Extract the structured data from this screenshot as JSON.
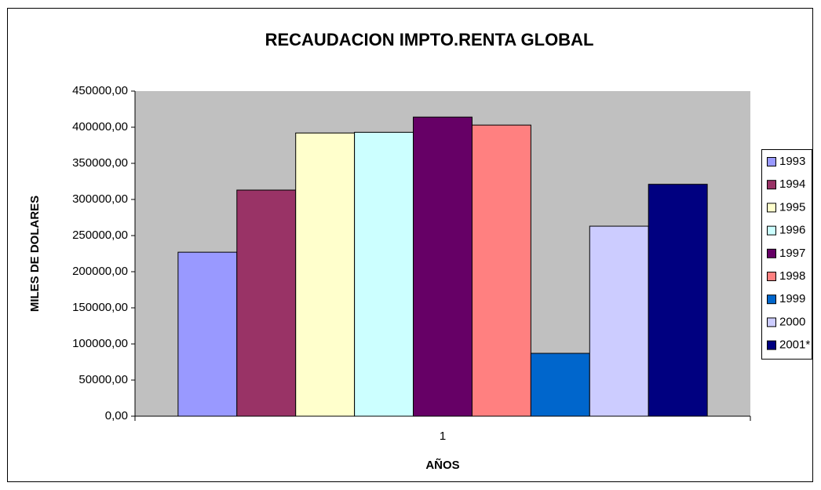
{
  "chart_data": {
    "type": "bar",
    "title": "RECAUDACION IMPTO.RENTA GLOBAL",
    "xlabel": "AÑOS",
    "ylabel": "MILES DE DOLARES",
    "categories": [
      "1"
    ],
    "series": [
      {
        "name": "1993",
        "color": "#9999ff",
        "values": [
          227000
        ]
      },
      {
        "name": "1994",
        "color": "#993366",
        "values": [
          313000
        ]
      },
      {
        "name": "1995",
        "color": "#ffffcc",
        "values": [
          392000
        ]
      },
      {
        "name": "1996",
        "color": "#ccffff",
        "values": [
          393000
        ]
      },
      {
        "name": "1997",
        "color": "#660066",
        "values": [
          414000
        ]
      },
      {
        "name": "1998",
        "color": "#ff8080",
        "values": [
          403000
        ]
      },
      {
        "name": "1999",
        "color": "#0066cc",
        "values": [
          87000
        ]
      },
      {
        "name": "2000",
        "color": "#ccccff",
        "values": [
          263000
        ]
      },
      {
        "name": "2001*",
        "color": "#000080",
        "values": [
          321000
        ]
      }
    ],
    "ylim": [
      0,
      450000
    ],
    "yticks": [
      {
        "value": 0,
        "label": "0,00"
      },
      {
        "value": 50000,
        "label": "50000,00"
      },
      {
        "value": 100000,
        "label": "100000,00"
      },
      {
        "value": 150000,
        "label": "150000,00"
      },
      {
        "value": 200000,
        "label": "200000,00"
      },
      {
        "value": 250000,
        "label": "250000,00"
      },
      {
        "value": 300000,
        "label": "300000,00"
      },
      {
        "value": 350000,
        "label": "350000,00"
      },
      {
        "value": 400000,
        "label": "400000,00"
      },
      {
        "value": 450000,
        "label": "450000,00"
      }
    ],
    "grid": false,
    "plot_background": "#c0c0c0",
    "legend": "right"
  }
}
